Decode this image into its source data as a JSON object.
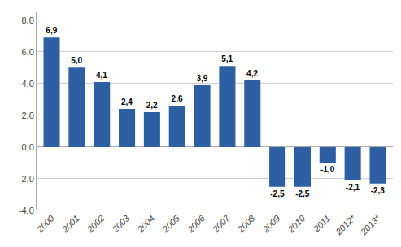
{
  "chart_data": {
    "type": "bar",
    "categories": [
      "2000",
      "2001",
      "2002",
      "2003",
      "2004",
      "2005",
      "2006",
      "2007",
      "2008",
      "2009",
      "2010",
      "2011",
      "2012*",
      "2013*"
    ],
    "values": [
      6.9,
      5.0,
      4.1,
      2.4,
      2.2,
      2.6,
      3.9,
      5.1,
      4.2,
      -2.5,
      -2.5,
      -1.0,
      -2.1,
      -2.3
    ],
    "value_labels": [
      "6,9",
      "5,0",
      "4,1",
      "2,4",
      "2,2",
      "2,6",
      "3,9",
      "5,1",
      "4,2",
      "-2,5",
      "-2,5",
      "-1,0",
      "-2,1",
      "-2,3"
    ],
    "data_labels": true,
    "color": "#2E5FA3",
    "ylim": [
      -4.0,
      8.5
    ],
    "yticks": [
      {
        "value": -4.0,
        "label": "-4,0"
      },
      {
        "value": -2.0,
        "label": "-2,0"
      },
      {
        "value": 0.0,
        "label": "0,0"
      },
      {
        "value": 2.0,
        "label": "2,0"
      },
      {
        "value": 4.0,
        "label": "4,0"
      },
      {
        "value": 6.0,
        "label": "6,0"
      },
      {
        "value": 8.0,
        "label": "8,0"
      }
    ],
    "grid": true
  }
}
